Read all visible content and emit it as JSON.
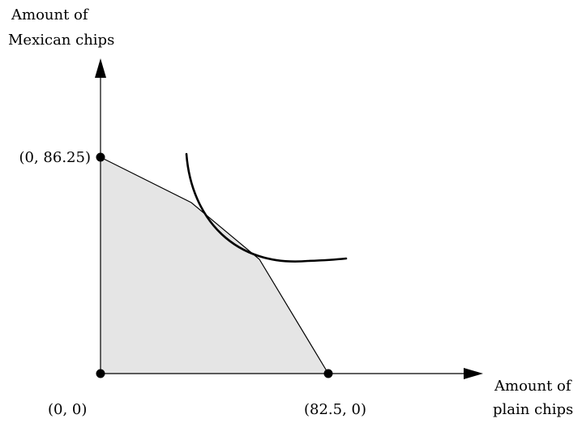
{
  "y_axis_label": [
    "Amount of",
    "Mexican chips"
  ],
  "x_axis_label": [
    "Amount of",
    "plain chips"
  ],
  "points": {
    "origin": "(0, 0)",
    "y_intercept": "(0, 86.25)",
    "x_intercept": "(82.5, 0)"
  },
  "colors": {
    "region_fill": "#e5e5e5",
    "lines": "#000000"
  }
}
